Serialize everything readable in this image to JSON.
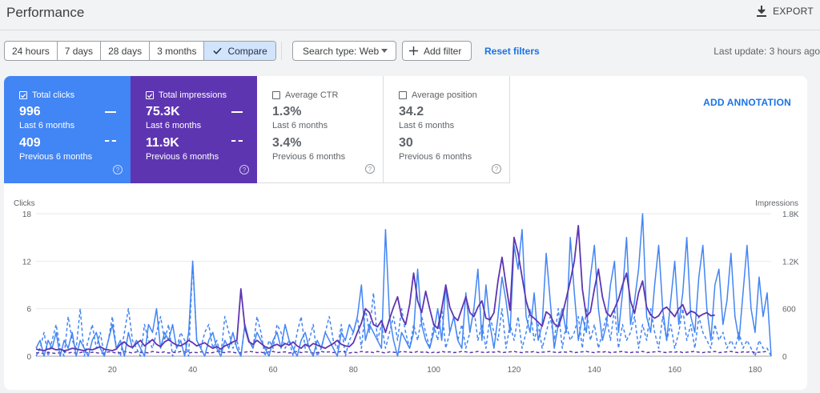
{
  "header": {
    "title": "Performance",
    "export_label": "EXPORT"
  },
  "toolbar": {
    "ranges": [
      "24 hours",
      "7 days",
      "28 days",
      "3 months",
      "Compare"
    ],
    "search_type": "Search type: Web",
    "add_filter": "Add filter",
    "reset_filters": "Reset filters",
    "last_update": "Last update: 3 hours ago"
  },
  "cards": [
    {
      "label": "Total clicks",
      "value": "996",
      "period": "Last 6 months",
      "value2": "409",
      "period2": "Previous 6 months",
      "checked": true,
      "color": "#4285f4"
    },
    {
      "label": "Total impressions",
      "value": "75.3K",
      "period": "Last 6 months",
      "value2": "11.9K",
      "period2": "Previous 6 months",
      "checked": true,
      "color": "#5e35b1"
    },
    {
      "label": "Average CTR",
      "value": "1.3%",
      "period": "Last 6 months",
      "value2": "3.4%",
      "period2": "Previous 6 months",
      "checked": false
    },
    {
      "label": "Average position",
      "value": "34.2",
      "period": "Last 6 months",
      "value2": "30",
      "period2": "Previous 6 months",
      "checked": false
    }
  ],
  "annotation_label": "ADD ANNOTATION",
  "colors": {
    "clicks": "#4285f4",
    "impressions": "#5e35b1",
    "accent": "#1a73e8"
  },
  "chart_data": {
    "type": "line",
    "y_left_label": "Clicks",
    "y_right_label": "Impressions",
    "y_left_ticks": [
      "0",
      "6",
      "12",
      "18"
    ],
    "y_right_ticks": [
      "0",
      "600",
      "1.2K",
      "1.8K"
    ],
    "x_ticks": [
      "20",
      "40",
      "60",
      "80",
      "100",
      "120",
      "140",
      "160",
      "180"
    ],
    "xlim": [
      1,
      184
    ],
    "ylim_left": [
      0,
      18
    ],
    "ylim_right": [
      0,
      1800
    ],
    "grid": true,
    "series": [
      {
        "name": "Clicks",
        "axis": "left",
        "style": "solid",
        "values": [
          1,
          2,
          0,
          2,
          1,
          3,
          0,
          2,
          1,
          3,
          0,
          2,
          1,
          0,
          2,
          3,
          1,
          0,
          2,
          4,
          1,
          2,
          0,
          3,
          1,
          2,
          1,
          0,
          4,
          3,
          6,
          1,
          3,
          2,
          4,
          1,
          2,
          0,
          3,
          12,
          2,
          1,
          0,
          2,
          3,
          1,
          0,
          2,
          1,
          3,
          1,
          0,
          4,
          2,
          1,
          3,
          2,
          1,
          0,
          2,
          3,
          1,
          4,
          2,
          1,
          0,
          2,
          3,
          1,
          0,
          2,
          1,
          3,
          2,
          1,
          0,
          3,
          2,
          4,
          3,
          5,
          9,
          2,
          4,
          3,
          2,
          1,
          16,
          5,
          2,
          0,
          3,
          2,
          1,
          3,
          11,
          4,
          2,
          1,
          3,
          6,
          2,
          9,
          3,
          5,
          2,
          1,
          8,
          3,
          6,
          11,
          2,
          9,
          4,
          1,
          5,
          10,
          7,
          3,
          14,
          11,
          16,
          5,
          3,
          8,
          2,
          4,
          13,
          7,
          1,
          4,
          6,
          3,
          15,
          8,
          2,
          5,
          3,
          10,
          14,
          6,
          2,
          4,
          9,
          12,
          3,
          8,
          15,
          4,
          7,
          11,
          18,
          5,
          3,
          9,
          14,
          6,
          2,
          7,
          12,
          4,
          8,
          15,
          5,
          3,
          10,
          14,
          6,
          2,
          9,
          11,
          4,
          7,
          13,
          5,
          2,
          8,
          14,
          6,
          3,
          10,
          5,
          8,
          0
        ]
      },
      {
        "name": "Impressions",
        "axis": "right",
        "style": "solid",
        "values": [
          90,
          80,
          70,
          90,
          100,
          80,
          90,
          70,
          80,
          100,
          90,
          80,
          70,
          90,
          80,
          100,
          120,
          90,
          80,
          70,
          90,
          150,
          180,
          130,
          110,
          160,
          200,
          130,
          170,
          210,
          150,
          120,
          180,
          210,
          170,
          140,
          130,
          160,
          200,
          170,
          130,
          150,
          170,
          130,
          100,
          120,
          90,
          130,
          150,
          180,
          200,
          850,
          360,
          180,
          150,
          200,
          160,
          120,
          100,
          130,
          150,
          120,
          160,
          140,
          180,
          130,
          100,
          150,
          120,
          160,
          140,
          120,
          100,
          130,
          160,
          200,
          150,
          130,
          120,
          170,
          300,
          420,
          600,
          550,
          400,
          370,
          450,
          300,
          470,
          620,
          750,
          500,
          400,
          650,
          1050,
          700,
          550,
          820,
          600,
          400,
          350,
          600,
          900,
          620,
          500,
          450,
          600,
          750,
          550,
          500,
          620,
          700,
          480,
          460,
          550,
          950,
          1250,
          900,
          580,
          1500,
          1300,
          1000,
          700,
          520,
          480,
          430,
          380,
          560,
          520,
          410,
          370,
          520,
          730,
          950,
          1200,
          1650,
          850,
          500,
          560,
          850,
          1100,
          750,
          550,
          500,
          600,
          720,
          900,
          1050,
          700,
          540,
          800,
          950,
          620,
          520,
          480,
          510,
          590,
          620,
          560,
          500,
          600,
          650,
          520,
          570,
          550,
          500,
          530,
          550,
          510,
          520
        ]
      },
      {
        "name": "Clicks (previous)",
        "axis": "left",
        "style": "dashed",
        "values": [
          0,
          1,
          3,
          0,
          2,
          4,
          1,
          0,
          5,
          2,
          1,
          6,
          0,
          2,
          4,
          1,
          3,
          0,
          2,
          5,
          1,
          0,
          3,
          6,
          2,
          1,
          0,
          4,
          2,
          1,
          3,
          5,
          2,
          4,
          0,
          1,
          3,
          2,
          0,
          12,
          2,
          1,
          3,
          4,
          1,
          2,
          0,
          5,
          3,
          1,
          2,
          0,
          4,
          2,
          1,
          5,
          3,
          0,
          2,
          1,
          4,
          3,
          1,
          2,
          0,
          3,
          5,
          1,
          2,
          4,
          0,
          1,
          3,
          5,
          2,
          1,
          4,
          0,
          2,
          3,
          5,
          1,
          6,
          3,
          8,
          2,
          4,
          1,
          3,
          5,
          2,
          6,
          3,
          1,
          4,
          2,
          5,
          3,
          1,
          4,
          2,
          6,
          1,
          3,
          5,
          2,
          4,
          1,
          3,
          6,
          2,
          4,
          1,
          5,
          3,
          2,
          6,
          1,
          4,
          2,
          5,
          1,
          3,
          6,
          2,
          4,
          1,
          3,
          5,
          2,
          6,
          1,
          4,
          2,
          3,
          5,
          1,
          6,
          2,
          4,
          1,
          3,
          5,
          2,
          6,
          1,
          4,
          2,
          3,
          5,
          1,
          4,
          2,
          6,
          3,
          1,
          5,
          2,
          4,
          1,
          3,
          6,
          2,
          4,
          1,
          5,
          3,
          2,
          1,
          4,
          2,
          3,
          1,
          2,
          1,
          3,
          1,
          2,
          1,
          0,
          2,
          1,
          1,
          0
        ]
      },
      {
        "name": "Impressions (previous)",
        "axis": "right",
        "style": "dashed",
        "values": [
          40,
          45,
          30,
          50,
          40,
          35,
          45,
          60,
          40,
          50,
          35,
          45,
          55,
          40,
          50,
          45,
          35,
          40,
          55,
          50,
          40,
          45,
          60,
          50,
          40,
          55,
          45,
          50,
          40,
          60,
          50,
          45,
          55,
          40,
          50,
          45,
          60,
          55,
          40,
          50,
          45,
          55,
          50,
          40,
          45,
          60,
          50,
          45,
          55,
          50,
          40,
          45,
          50,
          60,
          55,
          45,
          50,
          40,
          55,
          60,
          45,
          50,
          55,
          40,
          50,
          60,
          45,
          55,
          50,
          40,
          45,
          60,
          50,
          55,
          45,
          50,
          60,
          55,
          40,
          50,
          45,
          60,
          50,
          55,
          45,
          60,
          50,
          40,
          55,
          50,
          45,
          60,
          55,
          50,
          45,
          60,
          50,
          55,
          40,
          50,
          45,
          60,
          50,
          55,
          45,
          50,
          60,
          55,
          45,
          50,
          60,
          50,
          45,
          55,
          50,
          60,
          45,
          50,
          55,
          60,
          50,
          45,
          55,
          50,
          60,
          45,
          50,
          55,
          60,
          50,
          45,
          55,
          50,
          60,
          45,
          50,
          55,
          60,
          50,
          45,
          55,
          50,
          60,
          45,
          50,
          55,
          60,
          50,
          45,
          55,
          50,
          60,
          45,
          50,
          55,
          60,
          50,
          45,
          55,
          50,
          60,
          45,
          50,
          55,
          60,
          50,
          45,
          55,
          50,
          60,
          45,
          50,
          55,
          60,
          50,
          45,
          55,
          50,
          60,
          45,
          50,
          55,
          60
        ]
      }
    ]
  }
}
